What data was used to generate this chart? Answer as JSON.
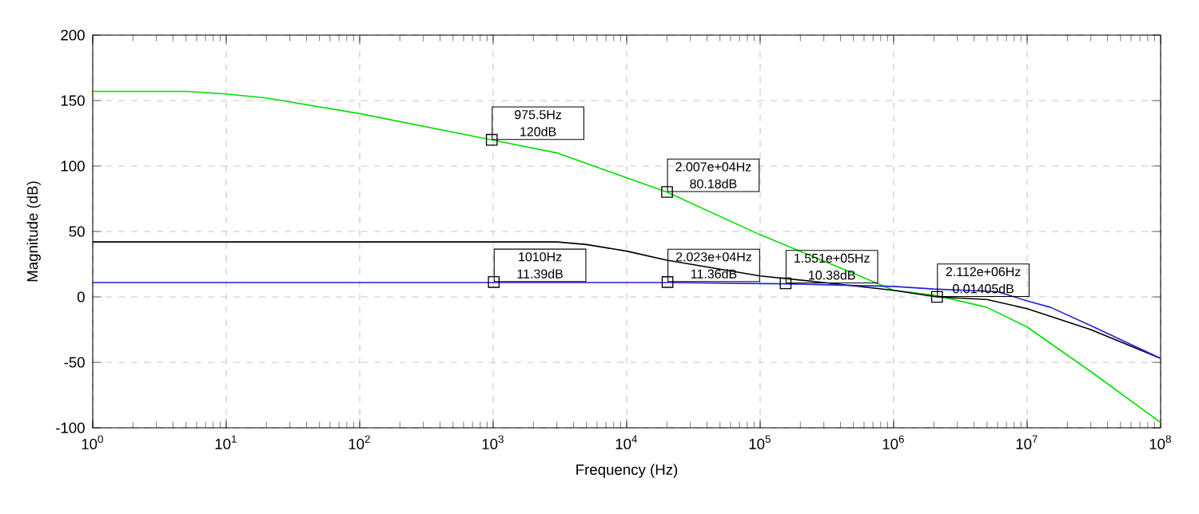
{
  "chart_data": {
    "type": "line",
    "xlabel": "Frequency (Hz)",
    "ylabel": "Magnitude (dB)",
    "log": "x",
    "grid": true,
    "marker": "none",
    "line_style": "solid",
    "xlim": [
      1,
      100000000
    ],
    "ylim": [
      -100,
      200
    ],
    "xticks": [
      {
        "value": 1,
        "label": "10$^{0}$"
      },
      {
        "value": 10,
        "label": "10$^{1}$"
      },
      {
        "value": 100,
        "label": "10$^{2}$"
      },
      {
        "value": 1000,
        "label": "10$^{3}$"
      },
      {
        "value": 10000,
        "label": "10$^{4}$"
      },
      {
        "value": 100000,
        "label": "10$^{5}$"
      },
      {
        "value": 1000000,
        "label": "10$^{6}$"
      },
      {
        "value": 10000000,
        "label": "10$^{7}$"
      },
      {
        "value": 100000000,
        "label": "10$^{8}$"
      }
    ],
    "yticks": [
      -100,
      -50,
      0,
      50,
      100,
      150,
      200
    ],
    "series": [
      {
        "color": "#00e000",
        "x": [
          1,
          5,
          10,
          20,
          100,
          975.5,
          3000,
          20070,
          100000,
          500000,
          1000000,
          2112000,
          5000000,
          10000000,
          30000000,
          100000000
        ],
        "values": [
          157,
          157,
          155,
          152,
          140,
          120,
          110,
          80,
          47.5,
          18,
          5,
          1,
          -8,
          -23,
          -57,
          -96
        ]
      },
      {
        "color": "#000000",
        "x": [
          1,
          1000,
          3000,
          5000,
          10000,
          20000,
          100000,
          300000,
          1000000,
          2112000,
          5000000,
          10000000,
          30000000,
          100000000
        ],
        "values": [
          42,
          42,
          42,
          40,
          35,
          28,
          16,
          11,
          5,
          0,
          -2,
          -9,
          -25,
          -47
        ]
      },
      {
        "color": "#2020e0",
        "x": [
          1,
          1010,
          20230,
          155100,
          1000000,
          2000000,
          6000000,
          10000000,
          15000000,
          30000000,
          100000000
        ],
        "values": [
          11,
          11,
          11,
          10,
          8,
          6,
          4,
          -3,
          -8,
          -22,
          -47
        ]
      }
    ],
    "annotations": [
      {
        "text": "975.5Hz 120dB",
        "x": 975.5,
        "y": 120
      },
      {
        "text": "2.007e+04Hz 80.18dB",
        "x": 20070,
        "y": 80.18
      },
      {
        "text": "1010Hz 11.39dB",
        "x": 1010,
        "y": 11.39
      },
      {
        "text": "2.023e+04Hz 11.36dB",
        "x": 20230,
        "y": 11.36
      },
      {
        "text": "1.551e+05Hz 10.38dB",
        "x": 155100,
        "y": 10.38
      },
      {
        "text": "2.112e+06Hz 0.01405dB",
        "x": 2112000,
        "y": 0.01405
      }
    ]
  }
}
